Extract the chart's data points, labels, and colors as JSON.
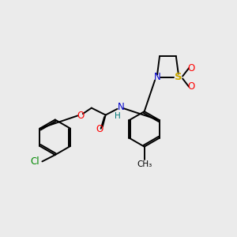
{
  "bg_color": "#ebebeb",
  "bond_color": "#000000",
  "o_color": "#ff0000",
  "n_color": "#0000cc",
  "s_color": "#ccaa00",
  "cl_color": "#008800",
  "nh_color": "#007777",
  "lw": 1.4,
  "fs": 8.5,
  "xlim": [
    0,
    10
  ],
  "ylim": [
    0,
    10
  ],
  "figsize": [
    3.0,
    3.0
  ],
  "dpi": 100
}
